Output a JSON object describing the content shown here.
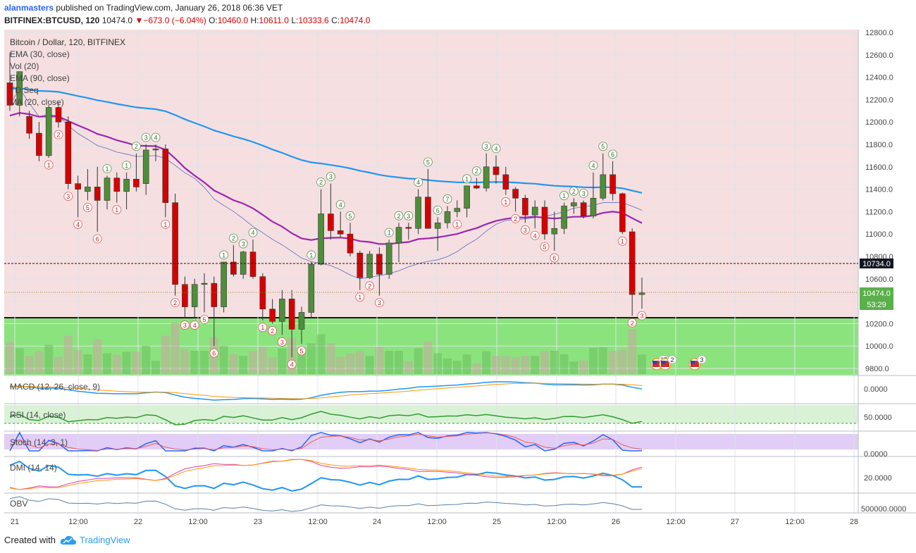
{
  "header": {
    "user": "alanmasters",
    "published": "published on TradingView.com, January 26, 2018 06:36 VET",
    "symbol": "BITFINEX:BTCUSD, 120",
    "last": "10474.0",
    "change": "−673.0 (−6.04%)",
    "open_label": "O:",
    "open": "10460.0",
    "high_label": "H:",
    "high": "10611.0",
    "low_label": "L:",
    "low": "10333.6",
    "close_label": "C:",
    "close": "10474.0"
  },
  "main_legend": {
    "title": "Bitcoin / Dollar, 120, BITFINEX",
    "indicators": [
      "EMA (30, close)",
      "Vol (20)",
      "EMA (90, close)",
      "TD Seq",
      "MA (20, close)"
    ]
  },
  "price_axis": {
    "ticks": [
      "12800.0",
      "12600.0",
      "12400.0",
      "12200.0",
      "12000.0",
      "11800.0",
      "11600.0",
      "11400.0",
      "11200.0",
      "11000.0",
      "10800.0",
      "10600.0",
      "10400.0",
      "10200.0",
      "10000.0",
      "9800.0"
    ],
    "level_line": "10734.0",
    "last_price": "10474.0",
    "countdown": "53:29"
  },
  "panes": {
    "macd": {
      "label": "MACD (12, 26, close, 9)",
      "tick": "0.0000"
    },
    "rsi": {
      "label": "RSI (14, close)",
      "tick": "50.0000"
    },
    "stoch": {
      "label": "Stoch (14, 3, 1)",
      "tick": "0.0000"
    },
    "dmi": {
      "label": "DMI (14, 14)",
      "tick": "20.0000"
    },
    "obv": {
      "label": "OBV",
      "tick": "500000.0000"
    }
  },
  "time_axis": [
    "21",
    "12:00",
    "22",
    "12:00",
    "23",
    "12:00",
    "24",
    "12:00",
    "25",
    "12:00",
    "26",
    "12:00",
    "27",
    "12:00",
    "28"
  ],
  "events": {
    "flag1": "37",
    "flag2": "2",
    "flag3": "3"
  },
  "footer": {
    "created": "Created with",
    "brand": "TradingView"
  },
  "colors": {
    "up": "#4e8e3a",
    "down": "#d60000",
    "ema30": "#9c27b0",
    "ema90": "#2196f3",
    "ma20": "#5c6bc0",
    "volume_zone": "#7ee06f",
    "price_bg": "#f6dfe0"
  },
  "chart_data": {
    "type": "candlestick",
    "interval": "2h",
    "candles": [
      {
        "o": 12350,
        "h": 12620,
        "l": 12100,
        "c": 12150
      },
      {
        "o": 12150,
        "h": 12450,
        "l": 12050,
        "c": 12450
      },
      {
        "o": 12050,
        "h": 12100,
        "l": 11850,
        "c": 11900
      },
      {
        "o": 11900,
        "h": 12000,
        "l": 11650,
        "c": 11700
      },
      {
        "o": 11700,
        "h": 12150,
        "l": 11680,
        "c": 12130
      },
      {
        "o": 12130,
        "h": 12180,
        "l": 11950,
        "c": 12000
      },
      {
        "o": 12000,
        "h": 12050,
        "l": 11400,
        "c": 11450
      },
      {
        "o": 11450,
        "h": 11520,
        "l": 11150,
        "c": 11400
      },
      {
        "o": 11380,
        "h": 11580,
        "l": 11300,
        "c": 11420
      },
      {
        "o": 11420,
        "h": 11600,
        "l": 11020,
        "c": 11300
      },
      {
        "o": 11300,
        "h": 11520,
        "l": 11220,
        "c": 11500
      },
      {
        "o": 11500,
        "h": 11550,
        "l": 11280,
        "c": 11380
      },
      {
        "o": 11380,
        "h": 11550,
        "l": 11220,
        "c": 11490
      },
      {
        "o": 11490,
        "h": 11720,
        "l": 11380,
        "c": 11420
      },
      {
        "o": 11450,
        "h": 11800,
        "l": 11350,
        "c": 11750
      },
      {
        "o": 11750,
        "h": 11800,
        "l": 11650,
        "c": 11760
      },
      {
        "o": 11760,
        "h": 11800,
        "l": 11150,
        "c": 11280
      },
      {
        "o": 11280,
        "h": 11360,
        "l": 10450,
        "c": 10550
      },
      {
        "o": 10550,
        "h": 10620,
        "l": 10250,
        "c": 10350
      },
      {
        "o": 10350,
        "h": 10600,
        "l": 10250,
        "c": 10550
      },
      {
        "o": 10550,
        "h": 10650,
        "l": 10300,
        "c": 10560
      },
      {
        "o": 10560,
        "h": 10620,
        "l": 10000,
        "c": 10350
      },
      {
        "o": 10350,
        "h": 10750,
        "l": 10300,
        "c": 10750
      },
      {
        "o": 10750,
        "h": 10900,
        "l": 10620,
        "c": 10640
      },
      {
        "o": 10640,
        "h": 10850,
        "l": 10600,
        "c": 10840
      },
      {
        "o": 10840,
        "h": 10950,
        "l": 10600,
        "c": 10620
      },
      {
        "o": 10620,
        "h": 10650,
        "l": 10230,
        "c": 10330
      },
      {
        "o": 10330,
        "h": 10420,
        "l": 10200,
        "c": 10220
      },
      {
        "o": 10220,
        "h": 10500,
        "l": 10100,
        "c": 10420
      },
      {
        "o": 10420,
        "h": 10500,
        "l": 9900,
        "c": 10150
      },
      {
        "o": 10150,
        "h": 10350,
        "l": 10020,
        "c": 10300
      },
      {
        "o": 10300,
        "h": 10750,
        "l": 10250,
        "c": 10730
      },
      {
        "o": 10730,
        "h": 11400,
        "l": 10720,
        "c": 11180
      },
      {
        "o": 11180,
        "h": 11450,
        "l": 10950,
        "c": 11030
      },
      {
        "o": 11030,
        "h": 11200,
        "l": 10970,
        "c": 11000
      },
      {
        "o": 11000,
        "h": 11100,
        "l": 10800,
        "c": 10830
      },
      {
        "o": 10830,
        "h": 10850,
        "l": 10500,
        "c": 10610
      },
      {
        "o": 10610,
        "h": 10850,
        "l": 10600,
        "c": 10820
      },
      {
        "o": 10820,
        "h": 10880,
        "l": 10450,
        "c": 10640
      },
      {
        "o": 10640,
        "h": 10950,
        "l": 10600,
        "c": 10920
      },
      {
        "o": 10920,
        "h": 11100,
        "l": 10750,
        "c": 11060
      },
      {
        "o": 11060,
        "h": 11100,
        "l": 10950,
        "c": 11050
      },
      {
        "o": 11050,
        "h": 11400,
        "l": 11000,
        "c": 11330
      },
      {
        "o": 11330,
        "h": 11580,
        "l": 11050,
        "c": 11050
      },
      {
        "o": 11050,
        "h": 11150,
        "l": 10850,
        "c": 11100
      },
      {
        "o": 11100,
        "h": 11250,
        "l": 11050,
        "c": 11200
      },
      {
        "o": 11200,
        "h": 11300,
        "l": 11150,
        "c": 11230
      },
      {
        "o": 11230,
        "h": 11430,
        "l": 11150,
        "c": 11430
      },
      {
        "o": 11430,
        "h": 11500,
        "l": 11400,
        "c": 11410
      },
      {
        "o": 11410,
        "h": 11720,
        "l": 11380,
        "c": 11600
      },
      {
        "o": 11600,
        "h": 11700,
        "l": 11450,
        "c": 11530
      },
      {
        "o": 11530,
        "h": 11600,
        "l": 11350,
        "c": 11400
      },
      {
        "o": 11400,
        "h": 11420,
        "l": 11200,
        "c": 11320
      },
      {
        "o": 11320,
        "h": 11350,
        "l": 11100,
        "c": 11170
      },
      {
        "o": 11170,
        "h": 11300,
        "l": 11050,
        "c": 11240
      },
      {
        "o": 11240,
        "h": 11300,
        "l": 10950,
        "c": 11000
      },
      {
        "o": 11000,
        "h": 11200,
        "l": 10850,
        "c": 11050
      },
      {
        "o": 11050,
        "h": 11280,
        "l": 11000,
        "c": 11250
      },
      {
        "o": 11250,
        "h": 11320,
        "l": 11180,
        "c": 11280
      },
      {
        "o": 11280,
        "h": 11300,
        "l": 11140,
        "c": 11160
      },
      {
        "o": 11160,
        "h": 11550,
        "l": 11140,
        "c": 11320
      },
      {
        "o": 11320,
        "h": 11720,
        "l": 11300,
        "c": 11530
      },
      {
        "o": 11530,
        "h": 11650,
        "l": 11300,
        "c": 11360
      },
      {
        "o": 11360,
        "h": 11370,
        "l": 11000,
        "c": 11020
      },
      {
        "o": 11020,
        "h": 11050,
        "l": 10270,
        "c": 10460
      },
      {
        "o": 10460,
        "h": 10611,
        "l": 10333.6,
        "c": 10474
      }
    ]
  }
}
